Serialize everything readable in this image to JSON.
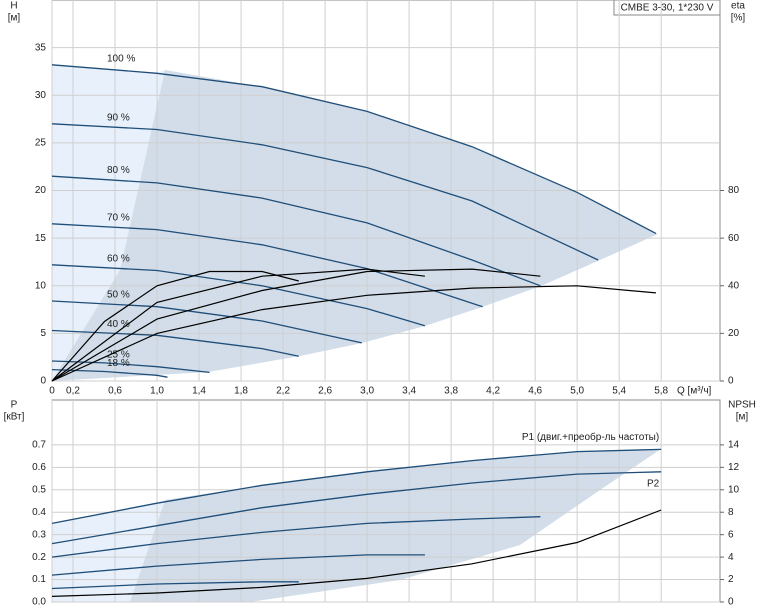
{
  "chart_data": [
    {
      "type": "line",
      "title": "CMBE 3-30, 1*230 V",
      "x_label": "Q [м³/ч]",
      "y_label": "H",
      "y_unit": "[м]",
      "y2_label": "eta",
      "y2_unit": "[%]",
      "xlim": [
        0,
        6.36
      ],
      "xticks": [
        0,
        {
          "value": 0.2,
          "label": "0,2"
        },
        {
          "value": 0.6,
          "label": "0,6"
        },
        {
          "value": 1.0,
          "label": "1,0"
        },
        {
          "value": 1.4,
          "label": "1,4"
        },
        {
          "value": 1.8,
          "label": "1,8"
        },
        {
          "value": 2.2,
          "label": "2,2"
        },
        {
          "value": 2.6,
          "label": "2,6"
        },
        {
          "value": 3.0,
          "label": "3,0"
        },
        {
          "value": 3.4,
          "label": "3,4"
        },
        {
          "value": 3.8,
          "label": "3,8"
        },
        {
          "value": 4.2,
          "label": "4,2"
        },
        {
          "value": 4.6,
          "label": "4,6"
        },
        {
          "value": 5.0,
          "label": "5,0"
        },
        {
          "value": 5.4,
          "label": "5,4"
        },
        {
          "value": 5.8,
          "label": "5,8"
        }
      ],
      "ylim": [
        0,
        40
      ],
      "yticks": [
        0,
        5,
        10,
        15,
        20,
        25,
        30,
        35
      ],
      "y2lim": [
        0,
        160
      ],
      "y2ticks": [
        0,
        20,
        40,
        60,
        80
      ],
      "grid": true,
      "series": [
        {
          "name": "100 %",
          "color": "#1f4e79",
          "x": [
            0,
            1,
            2,
            3,
            4,
            5,
            5.75
          ],
          "values": [
            33.2,
            32.3,
            30.9,
            28.3,
            24.6,
            19.8,
            15.5
          ]
        },
        {
          "name": "90 %",
          "color": "#1f4e79",
          "x": [
            0,
            1,
            2,
            3,
            4,
            5.2
          ],
          "values": [
            27.0,
            26.4,
            24.8,
            22.4,
            18.9,
            12.7
          ]
        },
        {
          "name": "80 %",
          "color": "#1f4e79",
          "x": [
            0,
            1,
            2,
            3,
            4,
            4.65
          ],
          "values": [
            21.5,
            20.8,
            19.2,
            16.6,
            12.7,
            10.0
          ]
        },
        {
          "name": "70 %",
          "color": "#1f4e79",
          "x": [
            0,
            1,
            2,
            3,
            4.1
          ],
          "values": [
            16.5,
            15.9,
            14.3,
            11.8,
            7.8
          ]
        },
        {
          "name": "60 %",
          "color": "#1f4e79",
          "x": [
            0,
            1,
            2,
            3,
            3.55
          ],
          "values": [
            12.2,
            11.6,
            10.0,
            7.6,
            5.8
          ]
        },
        {
          "name": "50 %",
          "color": "#1f4e79",
          "x": [
            0,
            1,
            2,
            2.95
          ],
          "values": [
            8.4,
            7.8,
            6.3,
            4.0
          ]
        },
        {
          "name": "40 %",
          "color": "#1f4e79",
          "x": [
            0,
            1,
            2,
            2.35
          ],
          "values": [
            5.3,
            4.8,
            3.4,
            2.6
          ]
        },
        {
          "name": "25 %",
          "color": "#1f4e79",
          "x": [
            0,
            0.5,
            1,
            1.5
          ],
          "values": [
            2.1,
            1.9,
            1.5,
            0.9
          ]
        },
        {
          "name": "18 %",
          "color": "#1f4e79",
          "x": [
            0,
            0.5,
            1,
            1.1
          ],
          "values": [
            1.2,
            1.0,
            0.6,
            0.4
          ]
        },
        {
          "color": "#000000",
          "axis": "y2",
          "x": [
            0,
            1,
            2,
            3,
            4,
            5,
            5.75
          ],
          "values": [
            0,
            20,
            30,
            36,
            39,
            40,
            37
          ]
        },
        {
          "color": "#000000",
          "axis": "y2",
          "x": [
            0,
            1,
            2,
            3,
            4,
            4.65
          ],
          "values": [
            0,
            26,
            38,
            46,
            47,
            44
          ]
        },
        {
          "color": "#000000",
          "axis": "y2",
          "x": [
            0,
            1,
            2,
            3,
            3.55
          ],
          "values": [
            0,
            33,
            44,
            47,
            44
          ]
        },
        {
          "color": "#000000",
          "axis": "y2",
          "x": [
            0,
            0.5,
            1,
            1.5,
            2,
            2.35
          ],
          "values": [
            0,
            25,
            40,
            46,
            46,
            42
          ]
        }
      ]
    },
    {
      "type": "line",
      "y_label": "P",
      "y_unit": "[кВт]",
      "y2_label": "NPSH",
      "y2_unit": "[м]",
      "xlim": [
        0,
        6.36
      ],
      "xticks": [
        0,
        0.2,
        0.6,
        1.0,
        1.4,
        1.8,
        2.2,
        2.6,
        3.0,
        3.4,
        3.8,
        4.2,
        4.6,
        5.0,
        5.4,
        5.8
      ],
      "ylim": [
        0,
        0.9
      ],
      "yticks": [
        {
          "value": 0,
          "label": "0.0"
        },
        0.1,
        0.2,
        0.3,
        0.4,
        0.5,
        0.6,
        0.7
      ],
      "y2lim": [
        0,
        18
      ],
      "y2ticks": [
        0,
        2,
        4,
        6,
        8,
        10,
        12,
        14
      ],
      "grid": true,
      "series": [
        {
          "name": "P1 (двиг.+преобр-ль частоты)",
          "color": "#1f4e79",
          "x": [
            0,
            1,
            2,
            3,
            4,
            5,
            5.8
          ],
          "values": [
            0.35,
            0.44,
            0.52,
            0.58,
            0.63,
            0.67,
            0.68
          ]
        },
        {
          "name": "P2",
          "color": "#1f4e79",
          "x": [
            0,
            1,
            2,
            3,
            4,
            5,
            5.8
          ],
          "values": [
            0.26,
            0.34,
            0.42,
            0.48,
            0.53,
            0.57,
            0.58
          ]
        },
        {
          "color": "#1f4e79",
          "x": [
            0,
            1,
            2,
            3,
            4,
            4.65
          ],
          "values": [
            0.2,
            0.26,
            0.31,
            0.35,
            0.37,
            0.38
          ]
        },
        {
          "color": "#1f4e79",
          "x": [
            0,
            1,
            2,
            3,
            3.55
          ],
          "values": [
            0.12,
            0.16,
            0.19,
            0.21,
            0.21
          ]
        },
        {
          "color": "#1f4e79",
          "x": [
            0,
            1,
            2,
            2.35
          ],
          "values": [
            0.06,
            0.08,
            0.09,
            0.09
          ]
        },
        {
          "color": "#000000",
          "axis": "y2",
          "x": [
            0,
            1,
            2,
            3,
            4,
            5,
            5.8
          ],
          "values": [
            0.5,
            0.8,
            1.3,
            2.1,
            3.4,
            5.3,
            8.2
          ]
        }
      ]
    }
  ]
}
